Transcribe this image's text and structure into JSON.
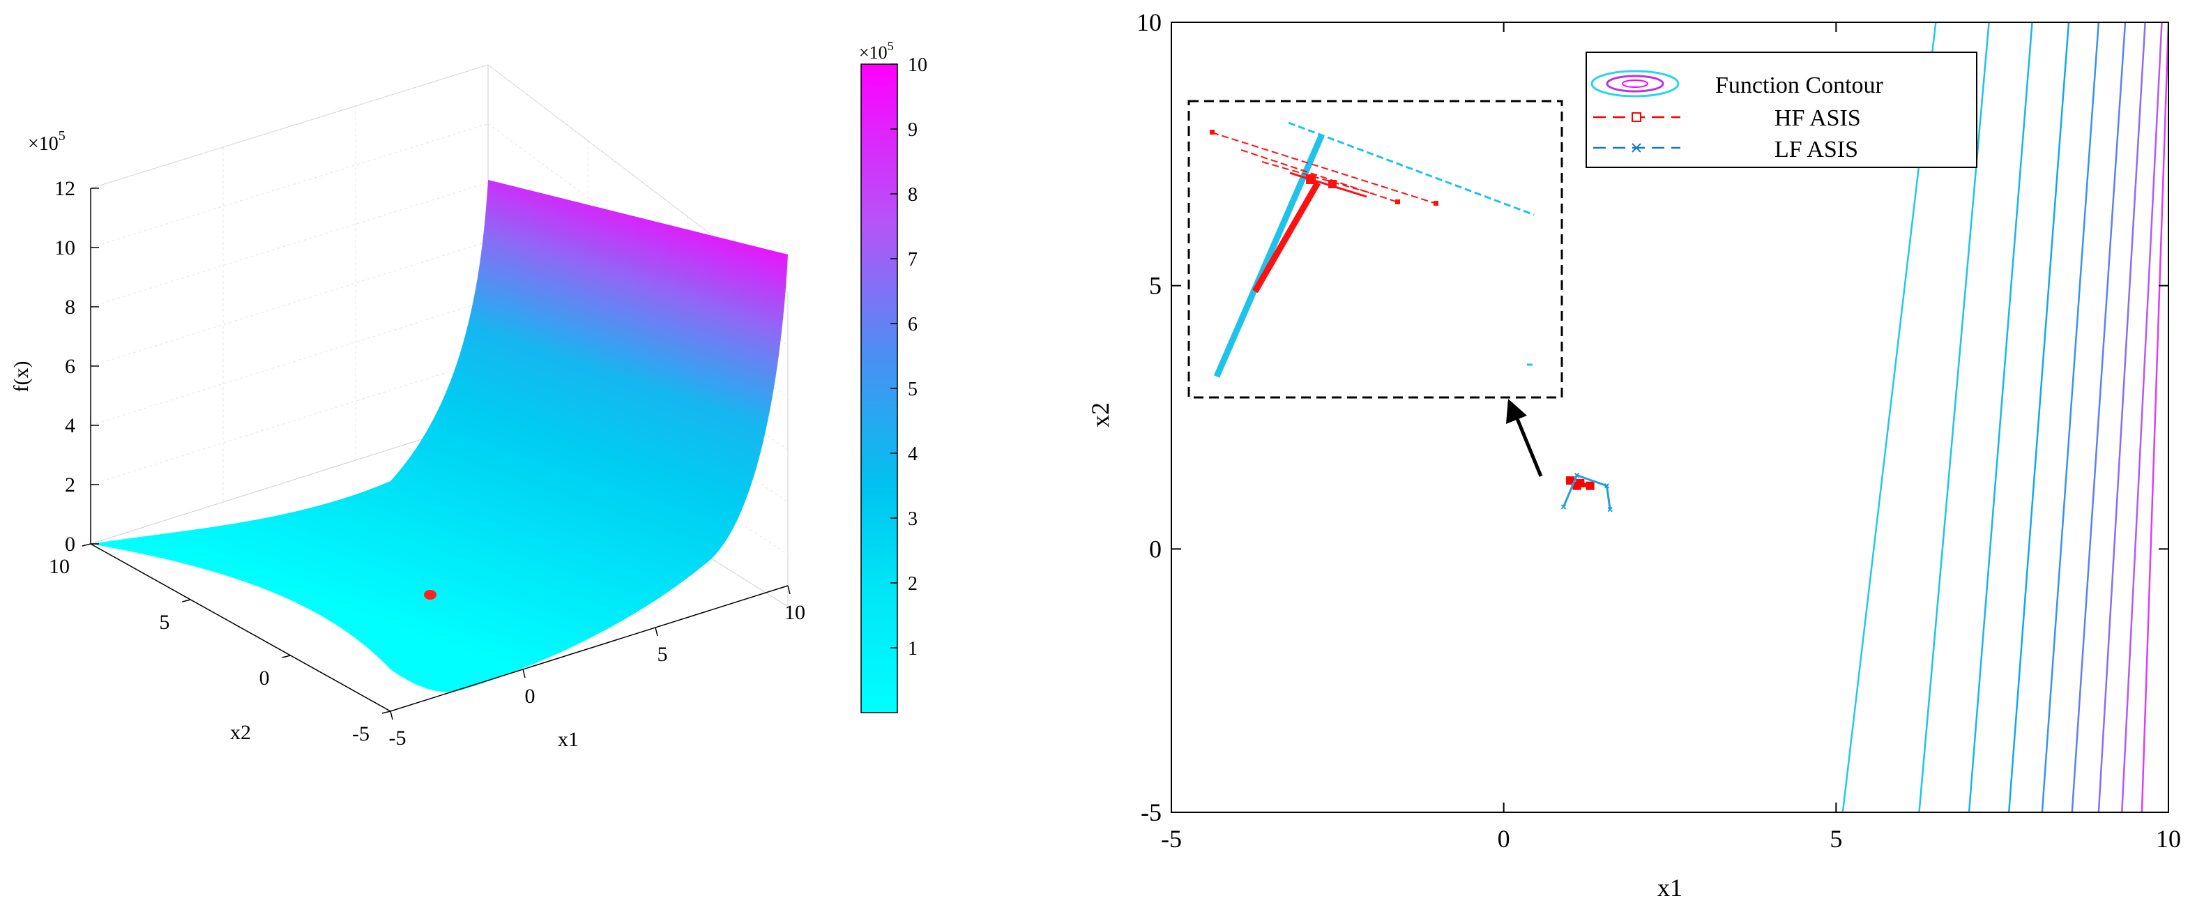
{
  "chart_data": [
    {
      "type": "surface3d",
      "title": "",
      "xlabel": "x1",
      "ylabel": "x2",
      "zlabel": "f(x)",
      "x_range": [
        -5,
        10
      ],
      "y_range": [
        -5,
        10
      ],
      "z_range": [
        0,
        12
      ],
      "x_ticks": [
        "-5",
        "0",
        "5",
        "10"
      ],
      "y_ticks": [
        "-5",
        "0",
        "5",
        "10"
      ],
      "z_ticks": [
        "0",
        "2",
        "4",
        "6",
        "8",
        "10",
        "12"
      ],
      "z_exponent": "×10",
      "z_exponent_power": "5",
      "colorbar": {
        "range": [
          0,
          10
        ],
        "ticks": [
          "1",
          "2",
          "3",
          "4",
          "5",
          "6",
          "7",
          "8",
          "9",
          "10"
        ],
        "exponent": "×10",
        "exponent_power": "5",
        "colors": [
          "#00ffff",
          "#00e8f8",
          "#00c8f0",
          "#4b8ff3",
          "#b455f8",
          "#ff00ff"
        ]
      },
      "grid": true,
      "marker": {
        "x": 1.2,
        "y": 1.2,
        "z": 0,
        "color": "#ff0000"
      }
    },
    {
      "type": "contour",
      "title": "",
      "xlabel": "x1",
      "ylabel": "x2",
      "xlim": [
        -5,
        10
      ],
      "ylim": [
        -5,
        10
      ],
      "x_ticks": [
        "-5",
        "0",
        "5",
        "10"
      ],
      "y_ticks": [
        "-5",
        "0",
        "5",
        "10"
      ],
      "contour_levels": [
        {
          "x_bottom": 5.1,
          "x_top": 6.5,
          "color": "#23c8e8"
        },
        {
          "x_bottom": 6.25,
          "x_top": 7.3,
          "color": "#1fc3ea"
        },
        {
          "x_bottom": 7.0,
          "x_top": 7.95,
          "color": "#19b5ec"
        },
        {
          "x_bottom": 7.6,
          "x_top": 8.5,
          "color": "#14a7ee"
        },
        {
          "x_bottom": 8.1,
          "x_top": 8.95,
          "color": "#3792f2"
        },
        {
          "x_bottom": 8.55,
          "x_top": 9.35,
          "color": "#5b80f4"
        },
        {
          "x_bottom": 8.95,
          "x_top": 9.65,
          "color": "#8a6cf5"
        },
        {
          "x_bottom": 9.3,
          "x_top": 9.9,
          "color": "#b458f7"
        },
        {
          "x_bottom": 9.6,
          "x_top": 10.0,
          "color": "#d93ffa"
        }
      ],
      "series": [
        {
          "name": "HF ASIS",
          "color": "#ff0000",
          "marker": "square",
          "points": [
            [
              1.0,
              1.3
            ],
            [
              1.1,
              1.2
            ],
            [
              1.3,
              1.2
            ],
            [
              1.15,
              1.25
            ]
          ]
        },
        {
          "name": "LF ASIS",
          "color": "#1f9fe0",
          "marker": "x",
          "points": [
            [
              0.9,
              0.8
            ],
            [
              1.1,
              1.4
            ],
            [
              1.55,
              1.2
            ],
            [
              1.6,
              0.75
            ]
          ]
        }
      ],
      "legend": {
        "position": "top-right",
        "entries": [
          "Function Contour",
          "HF ASIS",
          "LF ASIS"
        ],
        "colors": [
          "#2bd4ea",
          "#ff0000",
          "#1f77c4"
        ]
      },
      "inset": {
        "zoom_center": [
          1.15,
          1.15
        ]
      }
    }
  ]
}
